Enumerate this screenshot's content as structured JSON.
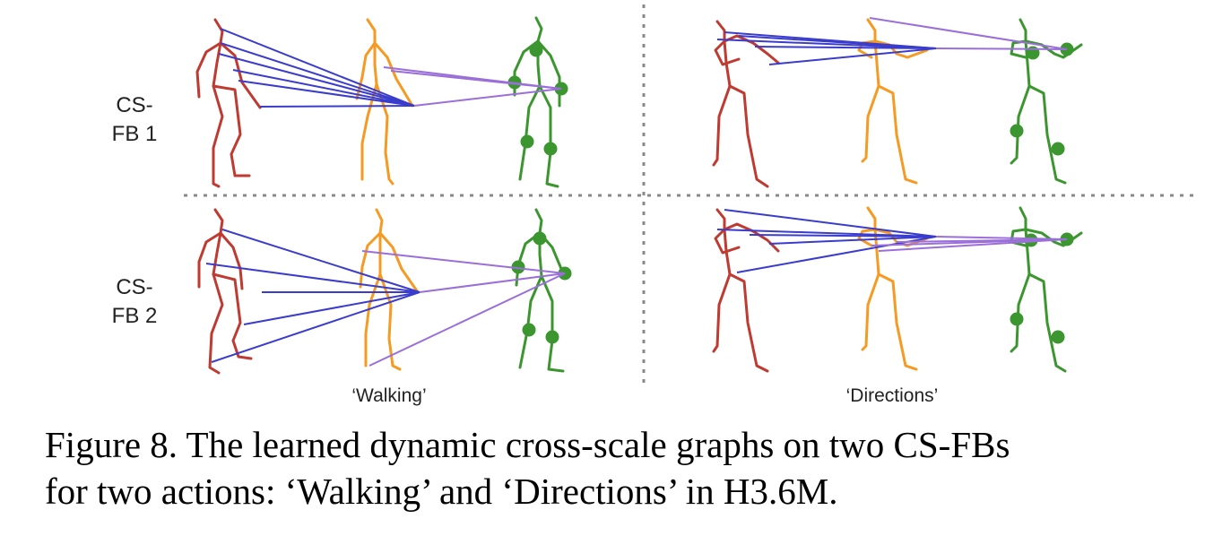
{
  "figure": {
    "row_labels": [
      {
        "line1": "CS-",
        "line2": "FB 1"
      },
      {
        "line1": "CS-",
        "line2": "FB 2"
      }
    ],
    "action_labels": [
      "‘Walking’",
      "‘Directions’"
    ],
    "colors": {
      "red_skeleton": "#bf3a30",
      "orange_skeleton": "#f59a22",
      "green_skeleton": "#3c962f",
      "blue_edges": "#3a3ccc",
      "purple_edges": "#9b6fd9",
      "divider": "#888888"
    }
  },
  "caption": {
    "line1": "Figure 8. The learned dynamic cross-scale graphs on two CS-FBs",
    "line2": "for two actions: ‘Walking’ and ‘Directions’ in H3.6M."
  }
}
